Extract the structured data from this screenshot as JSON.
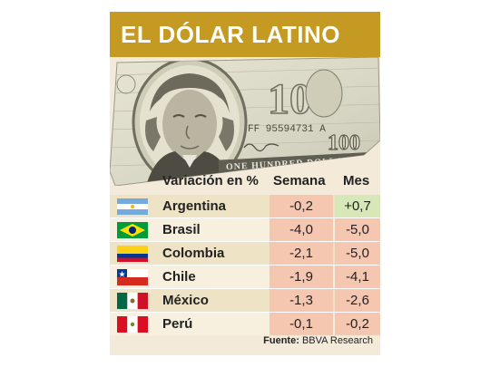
{
  "title": "EL DÓLAR LATINO",
  "bill": {
    "serial": "FF 95594731 A",
    "denomination": "100",
    "banner": "ONE HUNDRED DOLLARS"
  },
  "table": {
    "header_label": "Variación en %",
    "header_week": "Semana",
    "header_month": "Mes"
  },
  "source": {
    "label": "Fuente:",
    "value": "BBVA Research"
  },
  "chart_data": {
    "type": "table",
    "title": "EL DÓLAR LATINO",
    "columns": [
      "Variación en %",
      "Semana",
      "Mes"
    ],
    "rows": [
      {
        "country": "Argentina",
        "flag": "argentina-flag",
        "week": "-0,2",
        "month": "+0,7"
      },
      {
        "country": "Brasil",
        "flag": "brazil-flag",
        "week": "-4,0",
        "month": "-5,0"
      },
      {
        "country": "Colombia",
        "flag": "colombia-flag",
        "week": "-2,1",
        "month": "-5,0"
      },
      {
        "country": "Chile",
        "flag": "chile-flag",
        "week": "-1,9",
        "month": "-4,1"
      },
      {
        "country": "México",
        "flag": "mexico-flag",
        "week": "-1,3",
        "month": "-2,6"
      },
      {
        "country": "Perú",
        "flag": "peru-flag",
        "week": "-0,1",
        "month": "-0,2"
      }
    ],
    "values_week": [
      -0.2,
      -4.0,
      -2.1,
      -1.9,
      -1.3,
      -0.1
    ],
    "values_month": [
      0.7,
      -5.0,
      -5.0,
      -4.1,
      -2.6,
      -0.2
    ],
    "colors": {
      "title_bar": "#c49a23",
      "negative_cell": "#f6c7b0",
      "positive_cell": "#d6e8b8"
    }
  }
}
